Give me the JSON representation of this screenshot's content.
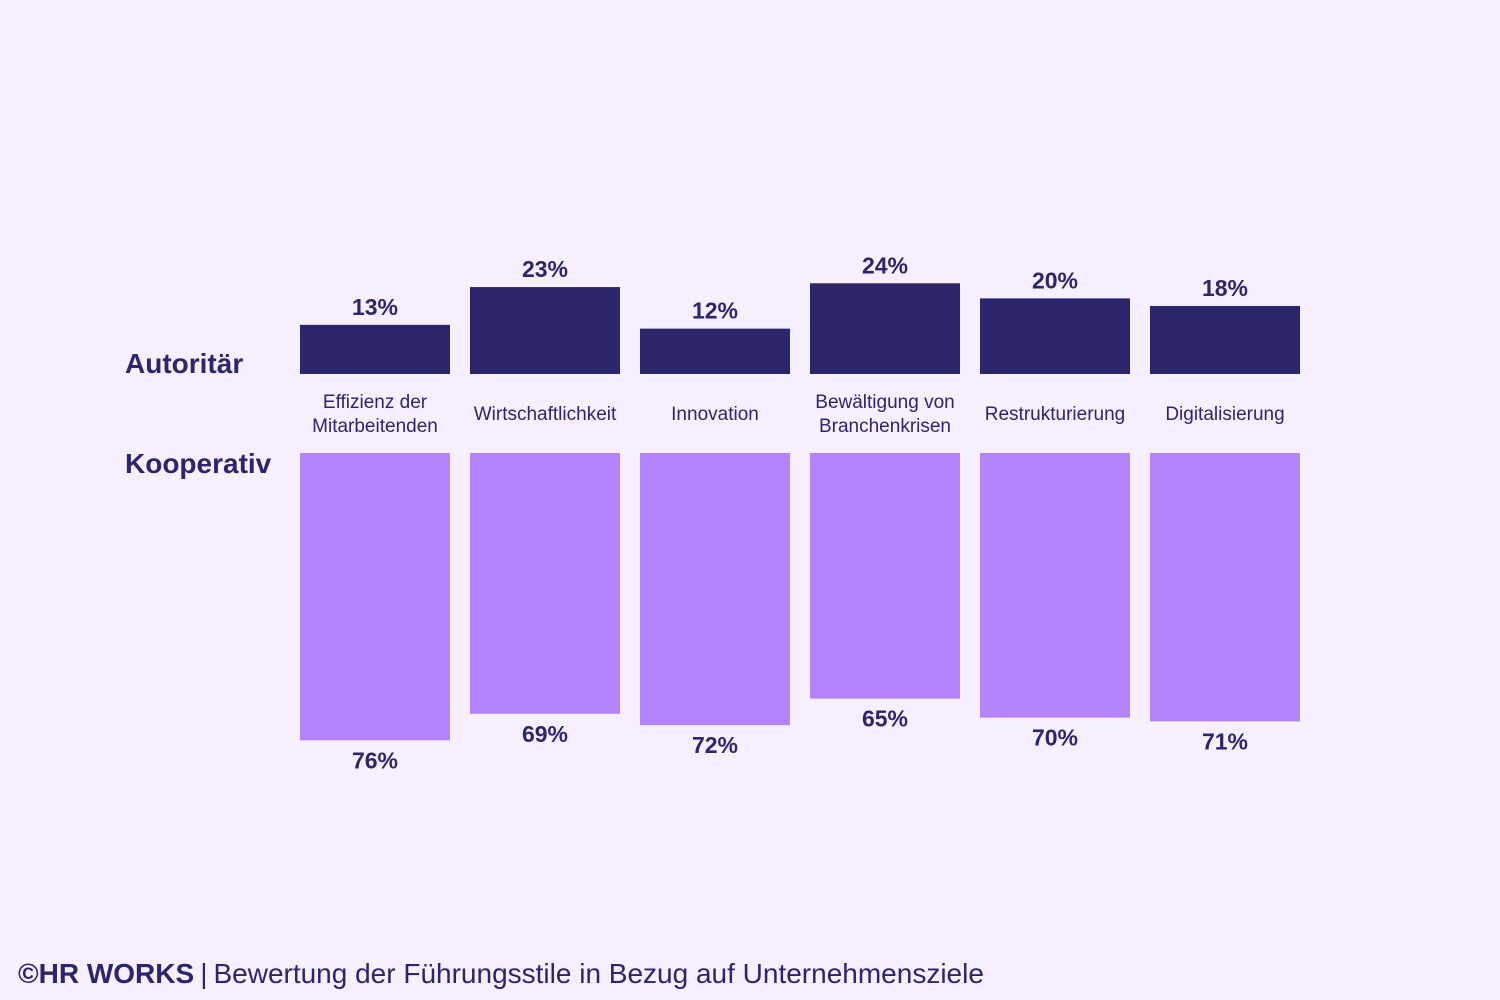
{
  "chart_data": {
    "type": "bar",
    "categories": [
      [
        "Effizienz der",
        "Mitarbeitenden"
      ],
      [
        "Wirtschaftlichkeit"
      ],
      [
        "Innovation"
      ],
      [
        "Bewältigung von",
        "Branchenkrisen"
      ],
      [
        "Restrukturierung"
      ],
      [
        "Digitalisierung"
      ]
    ],
    "series": [
      {
        "name": "Autoritär",
        "values": [
          13,
          23,
          12,
          24,
          20,
          18
        ],
        "labels": [
          "13%",
          "23%",
          "12%",
          "24%",
          "20%",
          "18%"
        ],
        "direction": "up"
      },
      {
        "name": "Kooperativ",
        "values": [
          76,
          69,
          72,
          65,
          70,
          71
        ],
        "labels": [
          "76%",
          "69%",
          "72%",
          "65%",
          "70%",
          "71%"
        ],
        "direction": "down"
      }
    ],
    "unit": "%",
    "colors": {
      "autoritaer": "#2b266c",
      "kooperativ": "#b382fd",
      "text": "#2b266c"
    }
  },
  "footer": {
    "brand": "©HR WORKS",
    "separator": "|",
    "text": "Bewertung der Führungsstile in Bezug auf Unternehmensziele"
  }
}
